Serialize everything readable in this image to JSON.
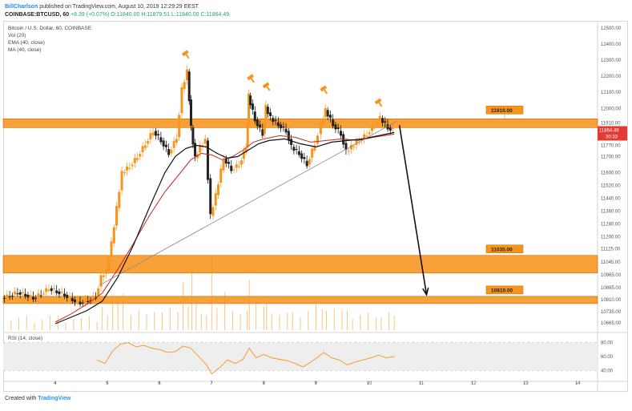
{
  "header": {
    "author": "BillCharlson",
    "published": "published on TradingView.com, August 10, 2019 12:29:29 EEST",
    "symbol": "COINBASE:BTCUSD, 60",
    "change": "+8.39 (+0.07%)",
    "ohlc_o": "O:11840.00",
    "ohlc_h": "H:11879.51",
    "ohlc_l": "L:11840.00",
    "ohlc_c": "C:11864.49"
  },
  "legend": {
    "title": "Bitcoin / U.S. Dollar, 60, COINBASE",
    "vol": "Vol (20)",
    "ema": "EMA (40, close)",
    "ma": "MA (40, close)",
    "rsi": "RSI (14, close)"
  },
  "footer": {
    "created_with": "Created with",
    "brand": "TradingView"
  },
  "colors": {
    "candle": "#f7941d",
    "candle_down": "#000000",
    "ema": "#c62828",
    "ma": "#111111",
    "zone": "#f7941d",
    "zone_border": "#c66a00",
    "price_tag": "#e53935",
    "rsi_line": "#f7941d"
  },
  "chart_data": {
    "type": "candlestick",
    "title": "Bitcoin / U.S. Dollar, 60, COINBASE",
    "price_axis": {
      "labels": [
        "12500.00",
        "12400.00",
        "12300.00",
        "12200.00",
        "12100.00",
        "12000.00",
        "11910.00",
        "11864.49",
        "11770.00",
        "11700.00",
        "11600.00",
        "11520.00",
        "11440.00",
        "11360.00",
        "11280.00",
        "11200.00",
        "11125.00",
        "11045.00",
        "10965.00",
        "10885.00",
        "10810.00",
        "10735.00",
        "10665.00"
      ],
      "range": [
        10620,
        12540
      ]
    },
    "time_axis": {
      "labels": [
        "4",
        "5",
        "6",
        "7",
        "8",
        "9",
        "10",
        "11",
        "12",
        "13",
        "14"
      ],
      "range": [
        3.0,
        14.4
      ]
    },
    "zones": [
      {
        "label": "11910.00",
        "low": 11880,
        "high": 11935
      },
      {
        "label": "11035.00",
        "low": 10975,
        "high": 11085
      },
      {
        "label": "10810.00",
        "low": 10785,
        "high": 10830
      }
    ],
    "current_price": {
      "label": "11864.49",
      "value": 11864.49,
      "countdown": "30:33"
    },
    "trendline": {
      "from": [
        4.85,
        10900
      ],
      "to": [
        10.55,
        11920
      ]
    },
    "projection": {
      "from": [
        10.6,
        11895
      ],
      "to": [
        11.12,
        10840
      ]
    },
    "markers": [
      [
        6.5,
        12340
      ],
      [
        7.75,
        12190
      ],
      [
        8.05,
        12140
      ],
      [
        9.15,
        12120
      ],
      [
        10.2,
        12040
      ]
    ],
    "close_path": [
      [
        3.0,
        10820
      ],
      [
        3.15,
        10835
      ],
      [
        3.3,
        10855
      ],
      [
        3.45,
        10840
      ],
      [
        3.6,
        10820
      ],
      [
        3.75,
        10845
      ],
      [
        3.9,
        10880
      ],
      [
        4.05,
        10860
      ],
      [
        4.2,
        10840
      ],
      [
        4.35,
        10810
      ],
      [
        4.5,
        10790
      ],
      [
        4.65,
        10805
      ],
      [
        4.8,
        10830
      ],
      [
        4.9,
        10950
      ],
      [
        5.0,
        10990
      ],
      [
        5.1,
        11160
      ],
      [
        5.2,
        11380
      ],
      [
        5.3,
        11600
      ],
      [
        5.45,
        11640
      ],
      [
        5.6,
        11700
      ],
      [
        5.75,
        11780
      ],
      [
        5.9,
        11860
      ],
      [
        6.05,
        11800
      ],
      [
        6.2,
        11720
      ],
      [
        6.35,
        11820
      ],
      [
        6.45,
        12120
      ],
      [
        6.55,
        12230
      ],
      [
        6.62,
        11880
      ],
      [
        6.7,
        11690
      ],
      [
        6.8,
        11760
      ],
      [
        6.9,
        11800
      ],
      [
        7.0,
        11330
      ],
      [
        7.1,
        11460
      ],
      [
        7.25,
        11690
      ],
      [
        7.4,
        11620
      ],
      [
        7.55,
        11650
      ],
      [
        7.68,
        11760
      ],
      [
        7.72,
        12080
      ],
      [
        7.85,
        11930
      ],
      [
        8.0,
        11840
      ],
      [
        8.05,
        12010
      ],
      [
        8.15,
        11940
      ],
      [
        8.3,
        11900
      ],
      [
        8.45,
        11860
      ],
      [
        8.55,
        11760
      ],
      [
        8.7,
        11720
      ],
      [
        8.85,
        11650
      ],
      [
        9.0,
        11780
      ],
      [
        9.12,
        11900
      ],
      [
        9.2,
        11990
      ],
      [
        9.35,
        11900
      ],
      [
        9.5,
        11840
      ],
      [
        9.6,
        11730
      ],
      [
        9.7,
        11760
      ],
      [
        9.85,
        11800
      ],
      [
        10.0,
        11840
      ],
      [
        10.15,
        11900
      ],
      [
        10.25,
        11940
      ],
      [
        10.4,
        11880
      ],
      [
        10.5,
        11864
      ]
    ],
    "ema_path": [
      [
        4.0,
        10670
      ],
      [
        4.3,
        10720
      ],
      [
        4.6,
        10780
      ],
      [
        4.9,
        10850
      ],
      [
        5.2,
        11000
      ],
      [
        5.5,
        11160
      ],
      [
        5.8,
        11330
      ],
      [
        6.1,
        11480
      ],
      [
        6.4,
        11600
      ],
      [
        6.6,
        11680
      ],
      [
        6.8,
        11720
      ],
      [
        7.0,
        11710
      ],
      [
        7.2,
        11680
      ],
      [
        7.4,
        11700
      ],
      [
        7.6,
        11740
      ],
      [
        7.8,
        11790
      ],
      [
        8.0,
        11810
      ],
      [
        8.3,
        11830
      ],
      [
        8.6,
        11820
      ],
      [
        8.9,
        11790
      ],
      [
        9.2,
        11800
      ],
      [
        9.5,
        11810
      ],
      [
        9.8,
        11800
      ],
      [
        10.1,
        11820
      ],
      [
        10.5,
        11840
      ]
    ],
    "ma_path": [
      [
        4.0,
        10660
      ],
      [
        4.3,
        10700
      ],
      [
        4.6,
        10740
      ],
      [
        4.9,
        10800
      ],
      [
        5.2,
        10950
      ],
      [
        5.5,
        11150
      ],
      [
        5.8,
        11380
      ],
      [
        6.1,
        11600
      ],
      [
        6.3,
        11700
      ],
      [
        6.5,
        11750
      ],
      [
        6.7,
        11770
      ],
      [
        6.9,
        11760
      ],
      [
        7.1,
        11720
      ],
      [
        7.3,
        11690
      ],
      [
        7.5,
        11700
      ],
      [
        7.7,
        11740
      ],
      [
        7.9,
        11780
      ],
      [
        8.1,
        11800
      ],
      [
        8.4,
        11810
      ],
      [
        8.7,
        11780
      ],
      [
        9.0,
        11760
      ],
      [
        9.3,
        11790
      ],
      [
        9.6,
        11800
      ],
      [
        9.9,
        11810
      ],
      [
        10.2,
        11830
      ],
      [
        10.5,
        11850
      ]
    ],
    "rsi": {
      "labels": [
        "80.00",
        "60.00",
        "40.00"
      ],
      "range": [
        30,
        90
      ],
      "band": [
        40,
        80
      ],
      "values": [
        [
          4.8,
          55
        ],
        [
          4.95,
          50
        ],
        [
          5.1,
          68
        ],
        [
          5.25,
          78
        ],
        [
          5.4,
          80
        ],
        [
          5.55,
          74
        ],
        [
          5.7,
          76
        ],
        [
          5.85,
          72
        ],
        [
          6.0,
          70
        ],
        [
          6.15,
          66
        ],
        [
          6.3,
          67
        ],
        [
          6.45,
          75
        ],
        [
          6.6,
          72
        ],
        [
          6.75,
          60
        ],
        [
          6.9,
          48
        ],
        [
          7.0,
          35
        ],
        [
          7.15,
          44
        ],
        [
          7.3,
          55
        ],
        [
          7.45,
          50
        ],
        [
          7.6,
          56
        ],
        [
          7.72,
          72
        ],
        [
          7.85,
          58
        ],
        [
          8.0,
          63
        ],
        [
          8.15,
          58
        ],
        [
          8.3,
          56
        ],
        [
          8.45,
          54
        ],
        [
          8.6,
          50
        ],
        [
          8.75,
          45
        ],
        [
          8.9,
          52
        ],
        [
          9.05,
          60
        ],
        [
          9.15,
          66
        ],
        [
          9.3,
          58
        ],
        [
          9.45,
          55
        ],
        [
          9.6,
          48
        ],
        [
          9.75,
          52
        ],
        [
          9.9,
          55
        ],
        [
          10.05,
          58
        ],
        [
          10.2,
          62
        ],
        [
          10.35,
          58
        ],
        [
          10.5,
          60
        ]
      ]
    }
  }
}
